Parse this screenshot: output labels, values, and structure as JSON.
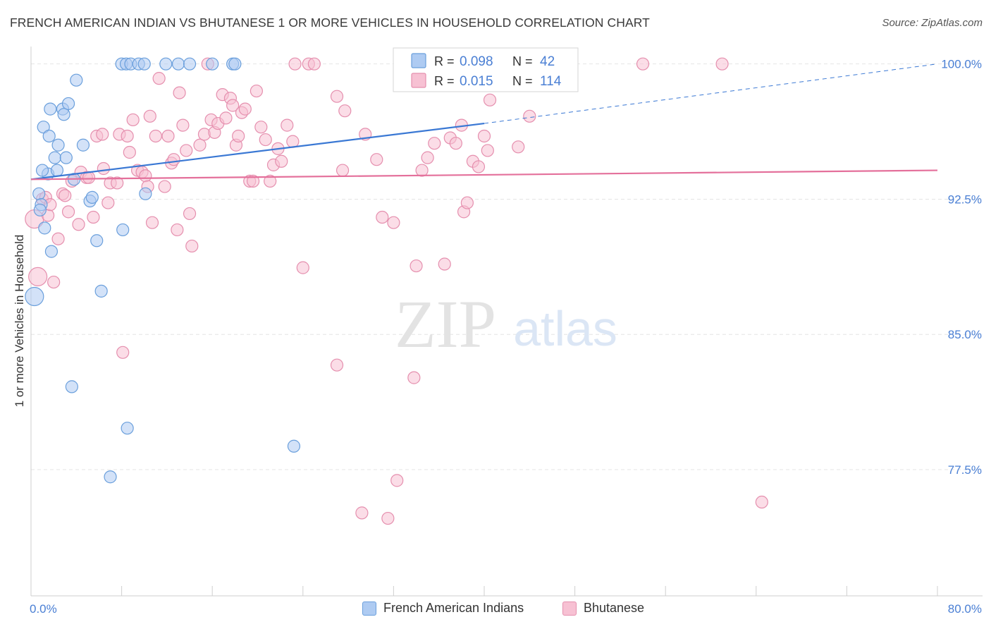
{
  "title": "FRENCH AMERICAN INDIAN VS BHUTANESE 1 OR MORE VEHICLES IN HOUSEHOLD CORRELATION CHART",
  "source": "Source: ZipAtlas.com",
  "watermark": {
    "zip": "ZIP",
    "atlas": "atlas"
  },
  "colors": {
    "blue_fill": "#aecbf2",
    "blue_stroke": "#6a9fdc",
    "blue_line": "#3a78d4",
    "pink_fill": "#f7c1d3",
    "pink_stroke": "#e58fae",
    "pink_line": "#e4709b",
    "tick_text": "#4a7fd4",
    "grid": "#e4e4e4"
  },
  "legend": {
    "rows": [
      {
        "r_label": "R =",
        "r_value": "0.098",
        "n_label": "N =",
        "n_value": "42"
      },
      {
        "r_label": "R =",
        "r_value": "0.015",
        "n_label": "N =",
        "n_value": "114"
      }
    ]
  },
  "bottom_legend": {
    "series1": "French American Indians",
    "series2": "Bhutanese"
  },
  "chart_data": {
    "type": "scatter",
    "title": "FRENCH AMERICAN INDIAN VS BHUTANESE 1 OR MORE VEHICLES IN HOUSEHOLD CORRELATION CHART",
    "xlabel": "",
    "ylabel": "1 or more Vehicles in Household",
    "xlim": [
      0,
      80
    ],
    "ylim": [
      70.5,
      101.2
    ],
    "x_tick_labels": [
      {
        "value": 0,
        "label": "0.0%"
      },
      {
        "value": 80,
        "label": "80.0%"
      }
    ],
    "y_tick_labels": [
      {
        "value": 100,
        "label": "100.0%"
      },
      {
        "value": 92.5,
        "label": "92.5%"
      },
      {
        "value": 85,
        "label": "85.0%"
      },
      {
        "value": 77.5,
        "label": "77.5%"
      }
    ],
    "grid": true,
    "legend_position": "top-center",
    "series": [
      {
        "name": "French American Indians",
        "r": 0.098,
        "n": 42,
        "trend": {
          "x0": 0,
          "y0": 93.6,
          "x1": 40,
          "y1": 96.7,
          "dashed_to_x": 80,
          "dashed_to_y": 100
        },
        "points": [
          [
            0.3,
            87.1,
            2
          ],
          [
            0.7,
            92.8,
            1
          ],
          [
            0.9,
            92.2,
            1
          ],
          [
            0.8,
            91.9,
            1
          ],
          [
            1.2,
            90.9,
            1
          ],
          [
            1.8,
            89.6,
            1
          ],
          [
            1.1,
            96.5,
            1
          ],
          [
            1.6,
            96.0,
            1
          ],
          [
            1.7,
            97.5,
            1
          ],
          [
            1.5,
            93.9,
            1
          ],
          [
            1.0,
            94.1,
            1
          ],
          [
            2.4,
            95.5,
            1
          ],
          [
            2.1,
            94.8,
            1
          ],
          [
            2.3,
            94.1,
            1
          ],
          [
            2.8,
            97.5,
            1
          ],
          [
            2.9,
            97.2,
            1
          ],
          [
            3.1,
            94.8,
            1
          ],
          [
            3.3,
            97.8,
            1
          ],
          [
            3.8,
            93.6,
            1
          ],
          [
            4.0,
            99.1,
            1
          ],
          [
            4.6,
            95.5,
            1
          ],
          [
            5.2,
            92.4,
            1
          ],
          [
            5.4,
            92.6,
            1
          ],
          [
            5.8,
            90.2,
            1
          ],
          [
            6.2,
            87.4,
            1
          ],
          [
            7.0,
            77.1,
            1
          ],
          [
            8.0,
            100.0,
            1
          ],
          [
            8.4,
            100.0,
            1
          ],
          [
            8.8,
            100.0,
            1
          ],
          [
            9.5,
            100.0,
            1
          ],
          [
            10.0,
            100.0,
            1
          ],
          [
            11.9,
            100.0,
            1
          ],
          [
            13.0,
            100.0,
            1
          ],
          [
            14.0,
            100.0,
            1
          ],
          [
            16.0,
            100.0,
            1
          ],
          [
            17.8,
            100.0,
            1
          ],
          [
            18.0,
            100.0,
            1
          ],
          [
            10.1,
            92.8,
            1
          ],
          [
            8.1,
            90.8,
            1
          ],
          [
            8.5,
            79.8,
            1
          ],
          [
            3.6,
            82.1,
            1
          ],
          [
            23.2,
            78.8,
            1
          ]
        ]
      },
      {
        "name": "Bhutanese",
        "r": 0.015,
        "n": 114,
        "trend": {
          "x0": 0,
          "y0": 93.6,
          "x1": 80,
          "y1": 94.1
        },
        "points": [
          [
            0.3,
            91.4,
            2
          ],
          [
            0.6,
            88.2,
            2
          ],
          [
            1.0,
            92.5,
            1
          ],
          [
            1.3,
            92.6,
            1
          ],
          [
            1.5,
            91.6,
            1
          ],
          [
            1.7,
            92.2,
            1
          ],
          [
            2.0,
            87.9,
            1
          ],
          [
            2.4,
            90.3,
            1
          ],
          [
            2.8,
            92.8,
            1
          ],
          [
            3.0,
            92.7,
            1
          ],
          [
            3.3,
            91.8,
            1
          ],
          [
            3.6,
            93.5,
            1
          ],
          [
            4.2,
            91.1,
            1
          ],
          [
            4.4,
            94.0,
            1
          ],
          [
            4.9,
            93.7,
            1
          ],
          [
            5.1,
            93.7,
            1
          ],
          [
            5.5,
            91.5,
            1
          ],
          [
            5.8,
            96.0,
            1
          ],
          [
            6.3,
            96.1,
            1
          ],
          [
            6.4,
            94.2,
            1
          ],
          [
            6.8,
            92.3,
            1
          ],
          [
            7.0,
            93.4,
            1
          ],
          [
            7.6,
            93.4,
            1
          ],
          [
            7.8,
            96.1,
            1
          ],
          [
            8.1,
            84.0,
            1
          ],
          [
            8.5,
            96.0,
            1
          ],
          [
            8.7,
            95.1,
            1
          ],
          [
            9.0,
            96.9,
            1
          ],
          [
            9.4,
            94.1,
            1
          ],
          [
            9.8,
            94.0,
            1
          ],
          [
            10.1,
            93.8,
            1
          ],
          [
            10.3,
            93.2,
            1
          ],
          [
            10.5,
            97.1,
            1
          ],
          [
            10.7,
            91.2,
            1
          ],
          [
            11.0,
            96.0,
            1
          ],
          [
            11.3,
            99.2,
            1
          ],
          [
            11.8,
            93.2,
            1
          ],
          [
            12.1,
            96.0,
            1
          ],
          [
            12.4,
            94.5,
            1
          ],
          [
            12.6,
            94.7,
            1
          ],
          [
            12.9,
            90.8,
            1
          ],
          [
            13.1,
            98.4,
            1
          ],
          [
            13.4,
            96.6,
            1
          ],
          [
            13.7,
            95.2,
            1
          ],
          [
            14.0,
            91.7,
            1
          ],
          [
            14.2,
            89.9,
            1
          ],
          [
            14.9,
            95.5,
            1
          ],
          [
            15.3,
            96.1,
            1
          ],
          [
            15.6,
            100.0,
            1
          ],
          [
            15.9,
            96.9,
            1
          ],
          [
            16.2,
            96.2,
            1
          ],
          [
            16.5,
            96.7,
            1
          ],
          [
            16.9,
            98.3,
            1
          ],
          [
            17.2,
            97.0,
            1
          ],
          [
            17.6,
            98.1,
            1
          ],
          [
            17.8,
            97.7,
            1
          ],
          [
            18.1,
            95.5,
            1
          ],
          [
            18.3,
            96.0,
            1
          ],
          [
            18.6,
            97.3,
            1
          ],
          [
            18.9,
            97.5,
            1
          ],
          [
            19.3,
            93.5,
            1
          ],
          [
            19.6,
            93.5,
            1
          ],
          [
            19.9,
            98.5,
            1
          ],
          [
            20.3,
            96.5,
            1
          ],
          [
            20.7,
            95.8,
            1
          ],
          [
            21.1,
            93.5,
            1
          ],
          [
            21.4,
            94.4,
            1
          ],
          [
            21.8,
            95.3,
            1
          ],
          [
            22.1,
            94.6,
            1
          ],
          [
            22.6,
            96.6,
            1
          ],
          [
            23.1,
            95.7,
            1
          ],
          [
            23.3,
            100.0,
            1
          ],
          [
            24.0,
            88.7,
            1
          ],
          [
            24.5,
            100.0,
            1
          ],
          [
            25.0,
            100.0,
            1
          ],
          [
            27.0,
            98.2,
            1
          ],
          [
            27.5,
            94.1,
            1
          ],
          [
            27.7,
            97.4,
            1
          ],
          [
            27.0,
            83.3,
            1
          ],
          [
            29.2,
            75.1,
            1
          ],
          [
            29.5,
            96.1,
            1
          ],
          [
            30.5,
            94.7,
            1
          ],
          [
            31.0,
            91.5,
            1
          ],
          [
            31.5,
            74.8,
            1
          ],
          [
            32.0,
            91.2,
            1
          ],
          [
            32.3,
            76.9,
            1
          ],
          [
            33.0,
            100.0,
            1
          ],
          [
            33.8,
            82.6,
            1
          ],
          [
            34.0,
            88.8,
            1
          ],
          [
            34.5,
            94.1,
            1
          ],
          [
            35.0,
            94.8,
            1
          ],
          [
            35.6,
            95.6,
            1
          ],
          [
            36.5,
            88.9,
            1
          ],
          [
            37.0,
            95.9,
            1
          ],
          [
            37.5,
            95.6,
            1
          ],
          [
            38.0,
            96.6,
            1
          ],
          [
            38.2,
            91.8,
            1
          ],
          [
            38.5,
            92.3,
            1
          ],
          [
            39.0,
            94.6,
            1
          ],
          [
            39.5,
            94.3,
            1
          ],
          [
            40.0,
            96.0,
            1
          ],
          [
            40.3,
            95.2,
            1
          ],
          [
            40.5,
            98.0,
            1
          ],
          [
            43.0,
            95.4,
            1
          ],
          [
            44.0,
            97.1,
            1
          ],
          [
            45.0,
            100.0,
            1
          ],
          [
            54.0,
            100.0,
            1
          ],
          [
            61.0,
            100.0,
            1
          ],
          [
            64.5,
            75.7,
            1
          ]
        ]
      }
    ]
  }
}
